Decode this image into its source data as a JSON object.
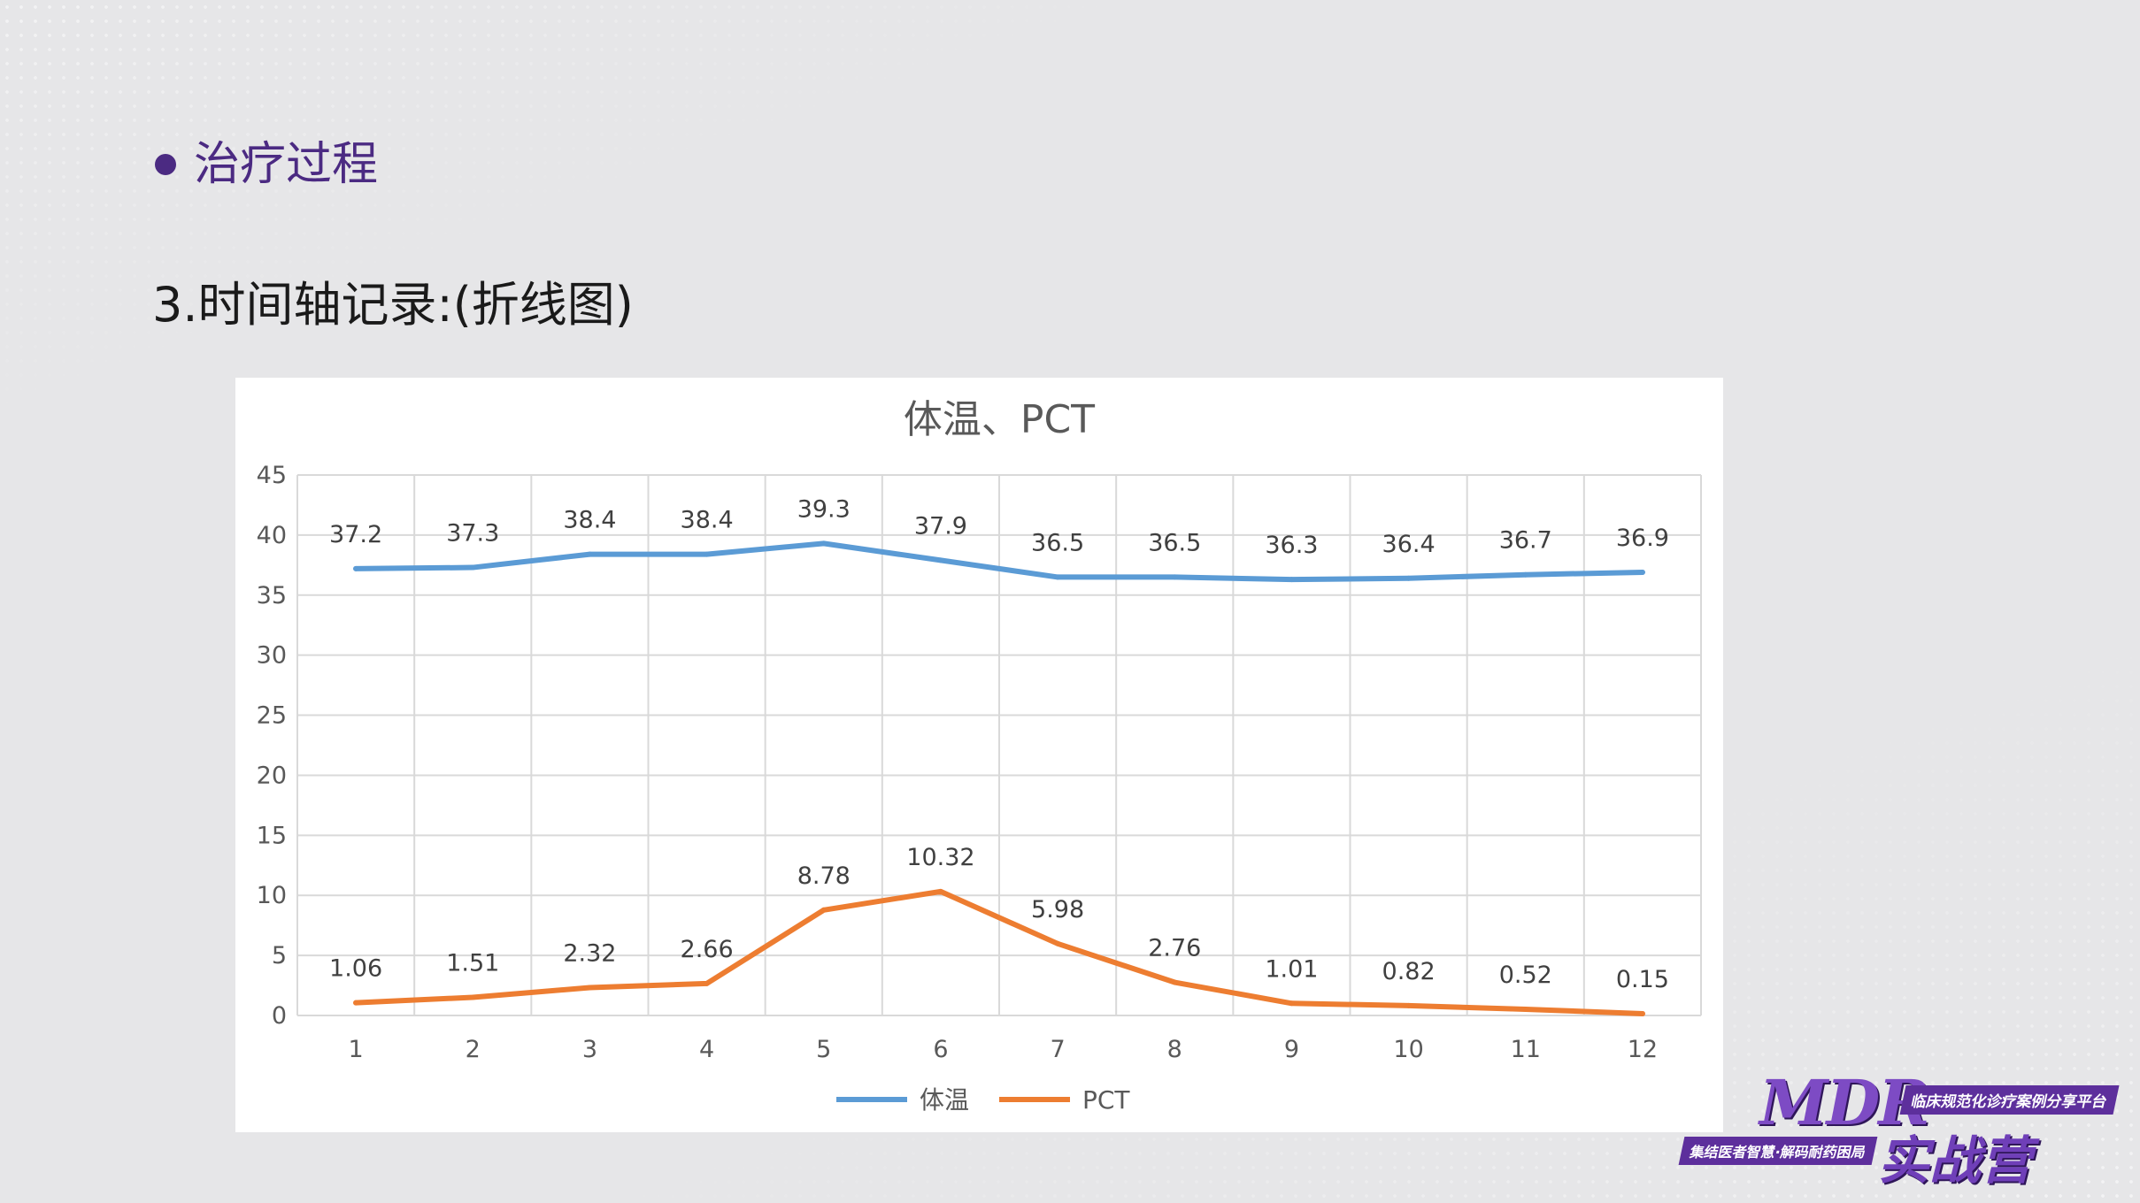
{
  "slide": {
    "heading": "治疗过程",
    "subheading": "3.时间轴记录:(折线图)"
  },
  "logo": {
    "brand": "MDR",
    "tagline": "临床规范化诊疗案例分享平台",
    "slogan": "集结医者智慧·解码耐药困局",
    "camp": "实战营"
  },
  "colors": {
    "accent": "#4b2a82",
    "series_temp": "#5b9bd5",
    "series_pct": "#ed7d31"
  },
  "chart_data": {
    "type": "line",
    "title": "体温、PCT",
    "xlabel": "",
    "ylabel": "",
    "categories": [
      "1",
      "2",
      "3",
      "4",
      "5",
      "6",
      "7",
      "8",
      "9",
      "10",
      "11",
      "12"
    ],
    "ylim": [
      0,
      45
    ],
    "yticks": [
      0,
      5,
      10,
      15,
      20,
      25,
      30,
      35,
      40,
      45
    ],
    "grid": true,
    "legend_position": "bottom",
    "series": [
      {
        "name": "体温",
        "color": "#5b9bd5",
        "values": [
          37.2,
          37.3,
          38.4,
          38.4,
          39.3,
          37.9,
          36.5,
          36.5,
          36.3,
          36.4,
          36.7,
          36.9
        ]
      },
      {
        "name": "PCT",
        "color": "#ed7d31",
        "values": [
          1.06,
          1.51,
          2.32,
          2.66,
          8.78,
          10.32,
          5.98,
          2.76,
          1.01,
          0.82,
          0.52,
          0.15
        ]
      }
    ]
  }
}
